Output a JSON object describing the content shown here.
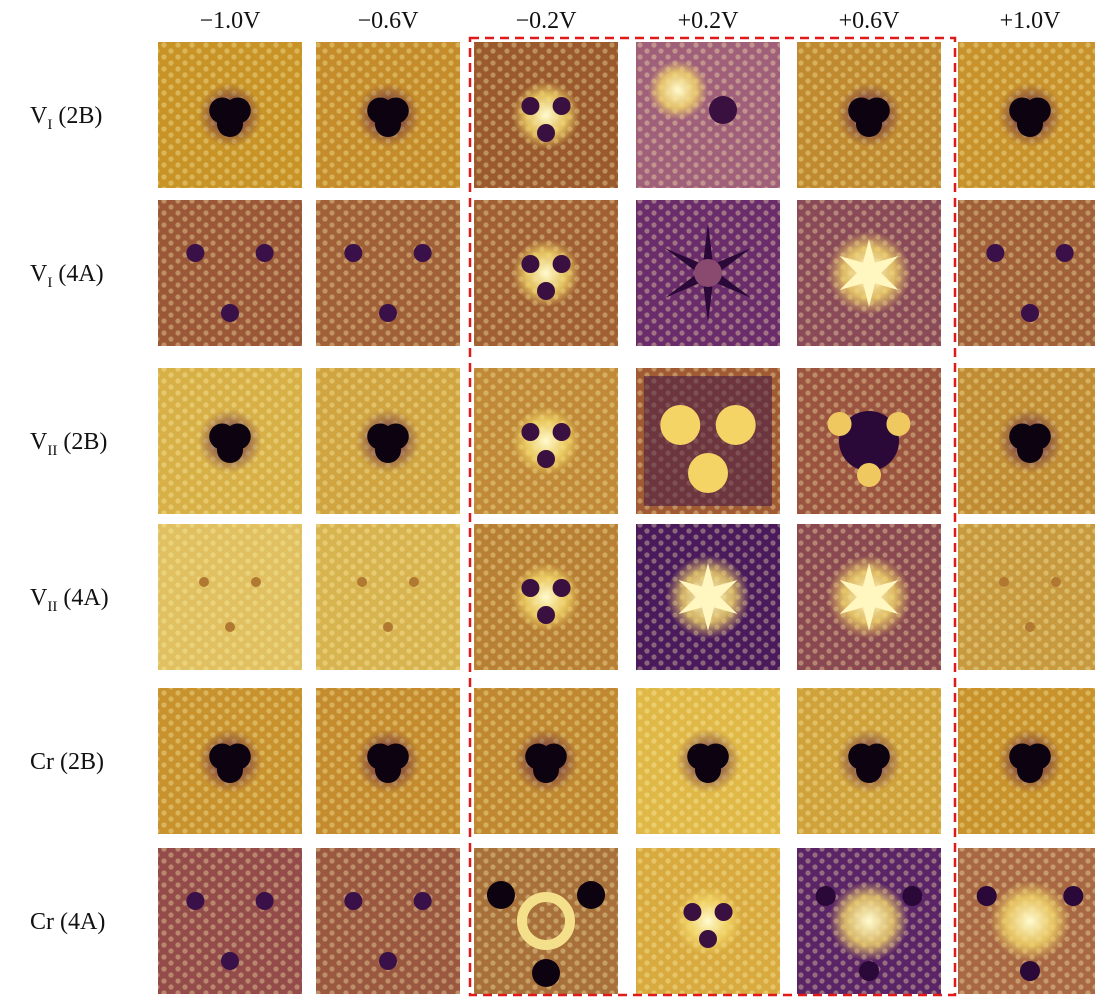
{
  "columns": [
    "−1.0V",
    "−0.6V",
    "−0.2V",
    "+0.2V",
    "+0.6V",
    "+1.0V"
  ],
  "rows": [
    {
      "name": "V",
      "subscript": "I",
      "tag": "(2B)"
    },
    {
      "name": "V",
      "subscript": "I",
      "tag": "(4A)"
    },
    {
      "name": "V",
      "subscript": "II",
      "tag": "(2B)"
    },
    {
      "name": "V",
      "subscript": "II",
      "tag": "(4A)"
    },
    {
      "name": "Cr",
      "tag": "(2B)"
    },
    {
      "name": "Cr",
      "tag": "(4A)"
    }
  ]
}
